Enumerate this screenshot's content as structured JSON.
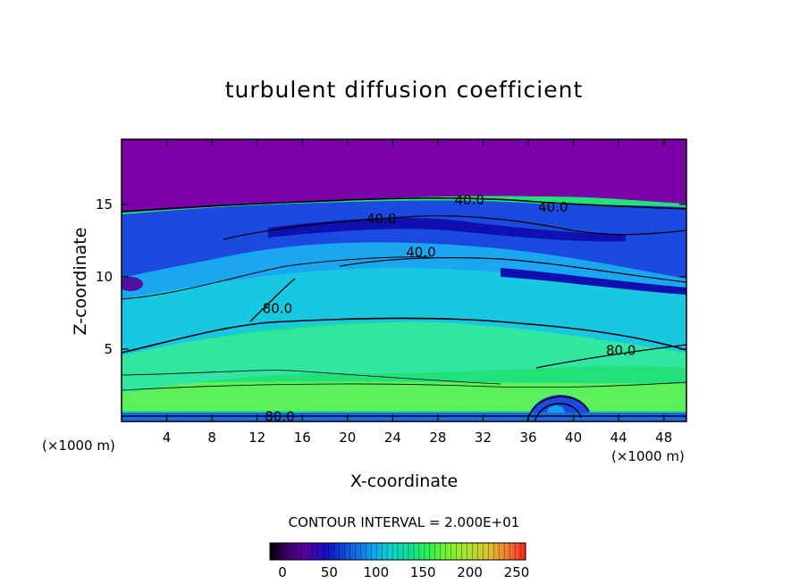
{
  "chart_data": {
    "type": "heatmap",
    "title": "turbulent diffusion coefficient",
    "xlabel": "X-coordinate",
    "ylabel": "Z-coordinate",
    "x_unit_label": "(×1000 m)",
    "xlim": [
      0,
      50
    ],
    "ylim": [
      0,
      19.5
    ],
    "x_ticks": [
      4,
      8,
      12,
      16,
      20,
      24,
      28,
      32,
      36,
      40,
      44,
      48
    ],
    "y_ticks": [
      5,
      10,
      15
    ],
    "contour_interval_text": "CONTOUR INTERVAL = 2.000E+01",
    "colorbar": {
      "range": [
        0,
        250
      ],
      "tick_values": [
        0,
        50,
        100,
        150,
        200,
        250
      ],
      "colors": [
        "#000000",
        "#3a0060",
        "#5a00a0",
        "#1010c0",
        "#1060e0",
        "#10a0f0",
        "#10d0d0",
        "#10e090",
        "#30f050",
        "#80f030",
        "#b0e030",
        "#e0c030",
        "#f07030",
        "#ff2020"
      ]
    },
    "contour_labels": [
      {
        "text": "40.0",
        "x": 30.8,
        "z": 15.3
      },
      {
        "text": "40.0",
        "x": 38.2,
        "z": 14.8
      },
      {
        "text": "40.0",
        "x": 23.0,
        "z": 14.0
      },
      {
        "text": "40.0",
        "x": 26.5,
        "z": 11.7
      },
      {
        "text": "80.0",
        "x": 13.8,
        "z": 7.8
      },
      {
        "text": "80.0",
        "x": 44.2,
        "z": 4.9
      },
      {
        "text": "80.0",
        "x": 14.0,
        "z": 0.35
      }
    ],
    "grid": false,
    "legend": "none"
  }
}
